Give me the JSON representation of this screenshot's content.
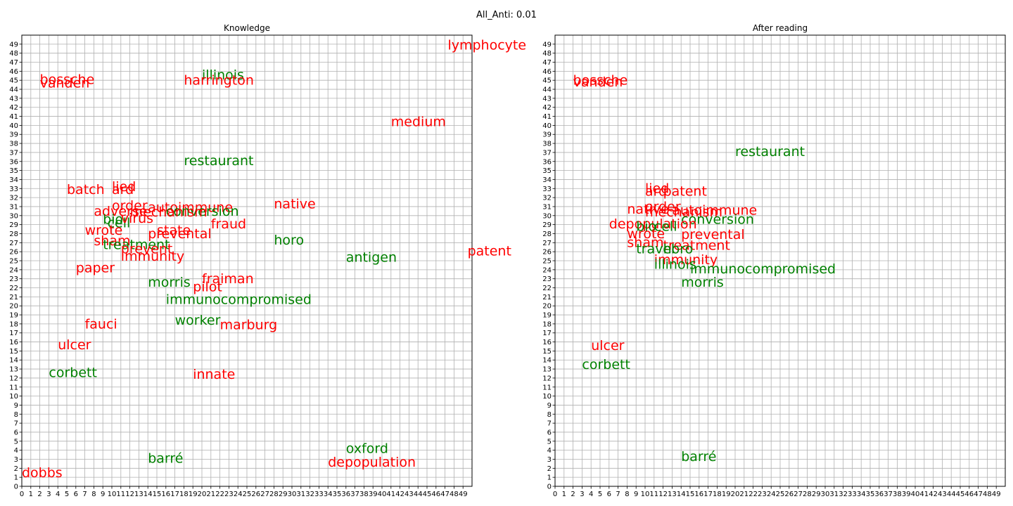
{
  "figure": {
    "suptitle": "All_Anti: 0.01"
  },
  "colors": {
    "red": "#ff0000",
    "green": "#008000",
    "grid": "#b0b0b0"
  },
  "chart_data": [
    {
      "type": "scatter",
      "title": "Knowledge",
      "xlim": [
        0,
        50
      ],
      "ylim": [
        0,
        50
      ],
      "xticks": [
        0,
        1,
        2,
        3,
        4,
        5,
        6,
        7,
        8,
        9,
        10,
        11,
        12,
        13,
        14,
        15,
        16,
        17,
        18,
        19,
        20,
        21,
        22,
        23,
        24,
        25,
        26,
        27,
        28,
        29,
        30,
        31,
        32,
        33,
        34,
        35,
        36,
        37,
        38,
        39,
        40,
        41,
        42,
        43,
        44,
        45,
        46,
        47,
        48,
        49
      ],
      "yticks": [
        0,
        1,
        2,
        3,
        4,
        5,
        6,
        7,
        8,
        9,
        10,
        11,
        12,
        13,
        14,
        15,
        16,
        17,
        18,
        19,
        20,
        21,
        22,
        23,
        24,
        25,
        26,
        27,
        28,
        29,
        30,
        31,
        32,
        33,
        34,
        35,
        36,
        37,
        38,
        39,
        40,
        41,
        42,
        43,
        44,
        45,
        46,
        47,
        48,
        49
      ],
      "grid": true,
      "points": [
        {
          "label": "lymphocyte",
          "x": 47.3,
          "y": 48.4,
          "color": "red"
        },
        {
          "label": "illinois",
          "x": 20.0,
          "y": 45.1,
          "color": "green"
        },
        {
          "label": "bossche",
          "x": 2.0,
          "y": 44.6,
          "color": "red"
        },
        {
          "label": "vanden",
          "x": 2.0,
          "y": 44.2,
          "color": "red"
        },
        {
          "label": "harrington",
          "x": 18.0,
          "y": 44.5,
          "color": "red"
        },
        {
          "label": "medium",
          "x": 41.0,
          "y": 39.9,
          "color": "red"
        },
        {
          "label": "restaurant",
          "x": 18.0,
          "y": 35.6,
          "color": "green"
        },
        {
          "label": "lied",
          "x": 10.0,
          "y": 32.7,
          "color": "red"
        },
        {
          "label": "batch",
          "x": 5.0,
          "y": 32.4,
          "color": "red"
        },
        {
          "label": "ard",
          "x": 10.0,
          "y": 32.4,
          "color": "red"
        },
        {
          "label": "native",
          "x": 28.0,
          "y": 30.8,
          "color": "red"
        },
        {
          "label": "order",
          "x": 10.0,
          "y": 30.6,
          "color": "red"
        },
        {
          "label": "autoimmune",
          "x": 14.0,
          "y": 30.4,
          "color": "red"
        },
        {
          "label": "adverse",
          "x": 8.0,
          "y": 30.0,
          "color": "red"
        },
        {
          "label": "conversion",
          "x": 16.0,
          "y": 30.0,
          "color": "green"
        },
        {
          "label": "mechanism",
          "x": 12.0,
          "y": 29.9,
          "color": "red"
        },
        {
          "label": "fraud",
          "x": 21.0,
          "y": 28.6,
          "color": "red"
        },
        {
          "label": "bio",
          "x": 9.0,
          "y": 29.1,
          "color": "green"
        },
        {
          "label": "cell",
          "x": 9.5,
          "y": 28.7,
          "color": "green"
        },
        {
          "label": "virus",
          "x": 11.0,
          "y": 29.2,
          "color": "red"
        },
        {
          "label": "wrote",
          "x": 7.0,
          "y": 27.9,
          "color": "red"
        },
        {
          "label": "state",
          "x": 15.0,
          "y": 27.9,
          "color": "red"
        },
        {
          "label": "prevental",
          "x": 14.0,
          "y": 27.5,
          "color": "red"
        },
        {
          "label": "horo",
          "x": 28.0,
          "y": 26.8,
          "color": "green"
        },
        {
          "label": "sham",
          "x": 8.0,
          "y": 26.7,
          "color": "red"
        },
        {
          "label": "treatment",
          "x": 9.0,
          "y": 26.3,
          "color": "green"
        },
        {
          "label": "patent",
          "x": 49.5,
          "y": 25.6,
          "color": "red"
        },
        {
          "label": "antigen",
          "x": 36.0,
          "y": 24.9,
          "color": "green"
        },
        {
          "label": "prevent",
          "x": 11.0,
          "y": 25.8,
          "color": "red"
        },
        {
          "label": "immunity",
          "x": 11.0,
          "y": 25.0,
          "color": "red"
        },
        {
          "label": "paper",
          "x": 6.0,
          "y": 23.7,
          "color": "red"
        },
        {
          "label": "fraiman",
          "x": 20.0,
          "y": 22.5,
          "color": "red"
        },
        {
          "label": "morris",
          "x": 14.0,
          "y": 22.1,
          "color": "green"
        },
        {
          "label": "pilot",
          "x": 19.0,
          "y": 21.6,
          "color": "red"
        },
        {
          "label": "immunocompromised",
          "x": 16.0,
          "y": 20.2,
          "color": "green"
        },
        {
          "label": "worker",
          "x": 17.0,
          "y": 17.9,
          "color": "green"
        },
        {
          "label": "fauci",
          "x": 7.0,
          "y": 17.5,
          "color": "red"
        },
        {
          "label": "marburg",
          "x": 22.0,
          "y": 17.4,
          "color": "red"
        },
        {
          "label": "ulcer",
          "x": 4.0,
          "y": 15.2,
          "color": "red"
        },
        {
          "label": "corbett",
          "x": 3.0,
          "y": 12.1,
          "color": "green"
        },
        {
          "label": "innate",
          "x": 19.0,
          "y": 11.9,
          "color": "red"
        },
        {
          "label": "oxford",
          "x": 36.0,
          "y": 3.7,
          "color": "green"
        },
        {
          "label": "barré",
          "x": 14.0,
          "y": 2.6,
          "color": "green"
        },
        {
          "label": "depopulation",
          "x": 34.0,
          "y": 2.2,
          "color": "red"
        },
        {
          "label": "dobbs",
          "x": 0.0,
          "y": 1.0,
          "color": "red"
        }
      ]
    },
    {
      "type": "scatter",
      "title": "After reading",
      "xlim": [
        0,
        50
      ],
      "ylim": [
        0,
        50
      ],
      "xticks": [
        0,
        1,
        2,
        3,
        4,
        5,
        6,
        7,
        8,
        9,
        10,
        11,
        12,
        13,
        14,
        15,
        16,
        17,
        18,
        19,
        20,
        21,
        22,
        23,
        24,
        25,
        26,
        27,
        28,
        29,
        30,
        31,
        32,
        33,
        34,
        35,
        36,
        37,
        38,
        39,
        40,
        41,
        42,
        43,
        44,
        45,
        46,
        47,
        48,
        49
      ],
      "yticks": [
        0,
        1,
        2,
        3,
        4,
        5,
        6,
        7,
        8,
        9,
        10,
        11,
        12,
        13,
        14,
        15,
        16,
        17,
        18,
        19,
        20,
        21,
        22,
        23,
        24,
        25,
        26,
        27,
        28,
        29,
        30,
        31,
        32,
        33,
        34,
        35,
        36,
        37,
        38,
        39,
        40,
        41,
        42,
        43,
        44,
        45,
        46,
        47,
        48,
        49
      ],
      "grid": true,
      "points": [
        {
          "label": "bossche",
          "x": 2.0,
          "y": 44.5,
          "color": "red"
        },
        {
          "label": "vanden",
          "x": 2.0,
          "y": 44.3,
          "color": "red"
        },
        {
          "label": "restaurant",
          "x": 20.0,
          "y": 36.6,
          "color": "green"
        },
        {
          "label": "lied",
          "x": 10.0,
          "y": 32.5,
          "color": "red"
        },
        {
          "label": "ard",
          "x": 10.0,
          "y": 32.2,
          "color": "red"
        },
        {
          "label": "patent",
          "x": 12.0,
          "y": 32.2,
          "color": "red"
        },
        {
          "label": "order",
          "x": 10.0,
          "y": 30.5,
          "color": "red"
        },
        {
          "label": "native",
          "x": 8.0,
          "y": 30.2,
          "color": "red"
        },
        {
          "label": "autoimmune",
          "x": 13.0,
          "y": 30.1,
          "color": "red"
        },
        {
          "label": "mechanism",
          "x": 10.0,
          "y": 29.9,
          "color": "red"
        },
        {
          "label": "conversion",
          "x": 14.0,
          "y": 29.1,
          "color": "green"
        },
        {
          "label": "depopulation",
          "x": 6.0,
          "y": 28.6,
          "color": "red"
        },
        {
          "label": "bio",
          "x": 9.0,
          "y": 28.3,
          "color": "green"
        },
        {
          "label": "cell",
          "x": 11.0,
          "y": 28.3,
          "color": "green"
        },
        {
          "label": "wrote",
          "x": 8.0,
          "y": 27.5,
          "color": "red"
        },
        {
          "label": "prevental",
          "x": 14.0,
          "y": 27.4,
          "color": "red"
        },
        {
          "label": "sham",
          "x": 8.0,
          "y": 26.5,
          "color": "red"
        },
        {
          "label": "treatment",
          "x": 12.0,
          "y": 26.2,
          "color": "red"
        },
        {
          "label": "travel",
          "x": 9.0,
          "y": 25.8,
          "color": "green"
        },
        {
          "label": "horo",
          "x": 12.0,
          "y": 25.8,
          "color": "green"
        },
        {
          "label": "immunity",
          "x": 11.0,
          "y": 24.6,
          "color": "red"
        },
        {
          "label": "illinois",
          "x": 11.0,
          "y": 24.1,
          "color": "green"
        },
        {
          "label": "immunocompromised",
          "x": 15.0,
          "y": 23.6,
          "color": "green"
        },
        {
          "label": "morris",
          "x": 14.0,
          "y": 22.1,
          "color": "green"
        },
        {
          "label": "ulcer",
          "x": 4.0,
          "y": 15.1,
          "color": "red"
        },
        {
          "label": "corbett",
          "x": 3.0,
          "y": 13.0,
          "color": "green"
        },
        {
          "label": "barré",
          "x": 14.0,
          "y": 2.8,
          "color": "green"
        }
      ]
    }
  ]
}
